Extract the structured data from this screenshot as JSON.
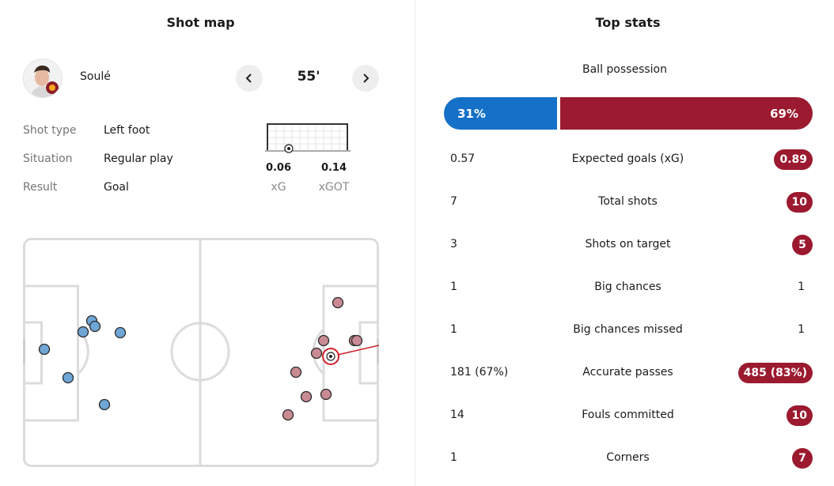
{
  "shot_map": {
    "title": "Shot map",
    "player_name": "Soulé",
    "minute": "55'",
    "details": [
      {
        "label": "Shot type",
        "value": "Left foot"
      },
      {
        "label": "Situation",
        "value": "Regular play"
      },
      {
        "label": "Result",
        "value": "Goal"
      }
    ],
    "metrics": [
      {
        "value": "0.06",
        "label": "xG"
      },
      {
        "value": "0.14",
        "label": "xGOT"
      }
    ],
    "colors": {
      "home": "#6fa6d6",
      "away": "#c98a93",
      "highlight": "#d21f2a"
    }
  },
  "top_stats": {
    "title": "Top stats",
    "possession": {
      "label": "Ball possession",
      "home": "31%",
      "away": "69%",
      "home_value": 31,
      "away_value": 69
    },
    "rows": [
      {
        "label": "Expected goals (xG)",
        "home": "0.57",
        "away": "0.89",
        "away_highlight": true
      },
      {
        "label": "Total shots",
        "home": "7",
        "away": "10",
        "away_highlight": true
      },
      {
        "label": "Shots on target",
        "home": "3",
        "away": "5",
        "away_highlight": true
      },
      {
        "label": "Big chances",
        "home": "1",
        "away": "1",
        "away_highlight": false
      },
      {
        "label": "Big chances missed",
        "home": "1",
        "away": "1",
        "away_highlight": false
      },
      {
        "label": "Accurate passes",
        "home": "181 (67%)",
        "away": "485 (83%)",
        "away_highlight": true
      },
      {
        "label": "Fouls committed",
        "home": "14",
        "away": "10",
        "away_highlight": true
      },
      {
        "label": "Corners",
        "home": "1",
        "away": "7",
        "away_highlight": true
      }
    ],
    "colors": {
      "home": "#1570c7",
      "away": "#9b1a2f"
    }
  },
  "icons": {
    "prev": "chevron-left-icon",
    "next": "chevron-right-icon",
    "goal": "goal-frame-icon",
    "ball": "ball-icon"
  }
}
